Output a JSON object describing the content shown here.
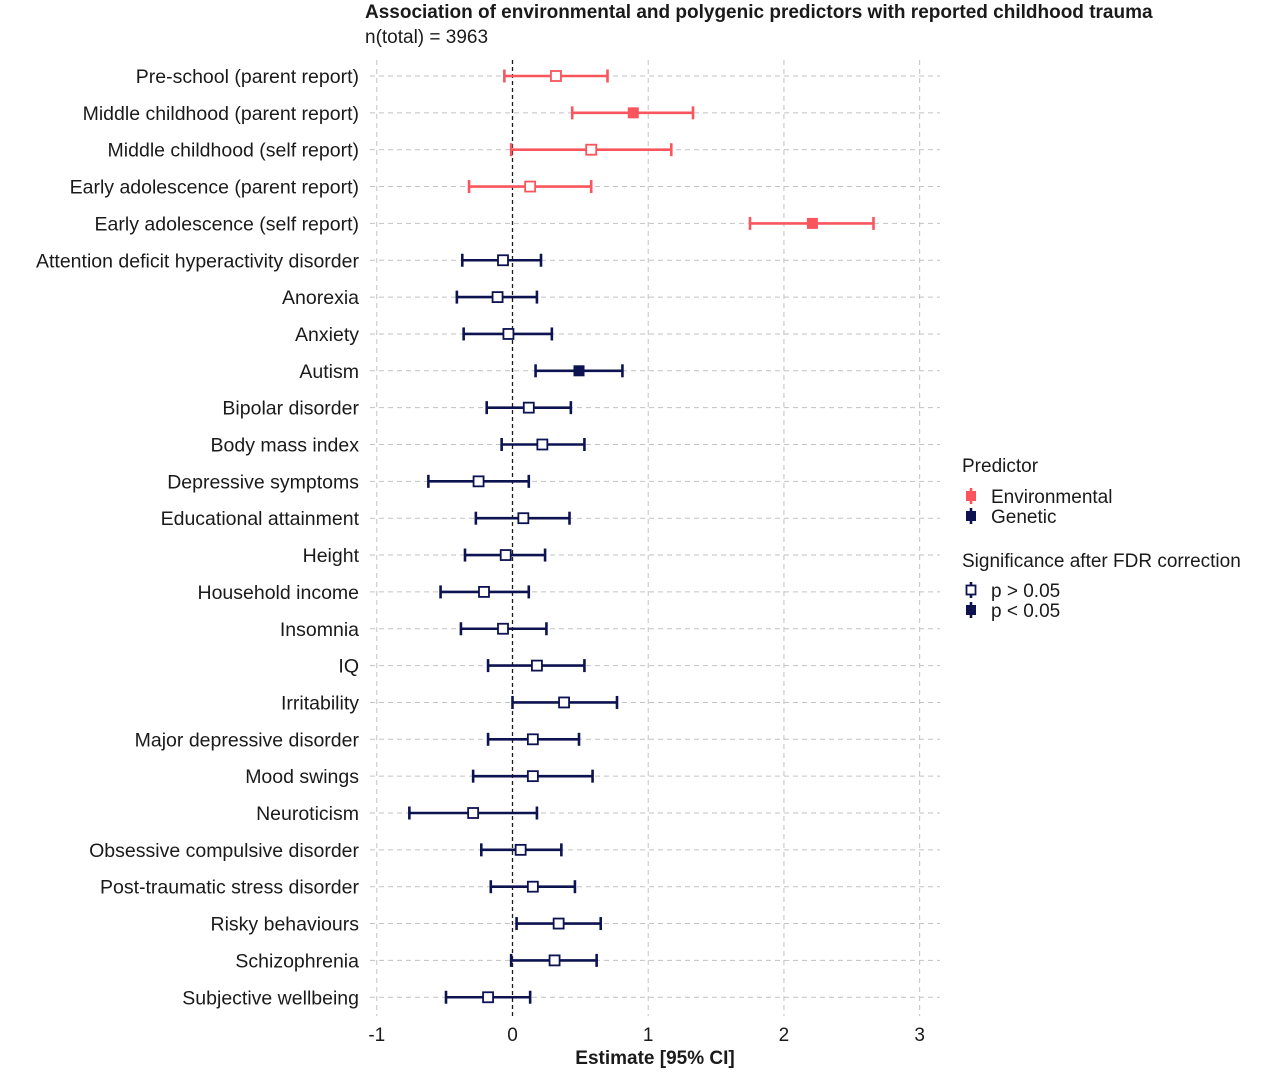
{
  "colors": {
    "environmental": "#f8565c",
    "genetic": "#0d1251",
    "grid": "#c2c2c2",
    "text": "#1a1a1a"
  },
  "chart_data": {
    "type": "forest",
    "title": "Association of environmental and polygenic predictors with reported childhood trauma",
    "subtitle": "n(total) =  3963",
    "xlabel": "Estimate [95% CI]",
    "xlim": [
      -1.05,
      3.15
    ],
    "xticks": [
      -1,
      0,
      1,
      2,
      3
    ],
    "xtick_labels": [
      "-1",
      "0",
      "1",
      "2",
      "3"
    ],
    "grid": true,
    "reference_line": 0,
    "legend": {
      "position": "right",
      "predictor_title": "Predictor",
      "predictor_items": [
        {
          "label": "Environmental",
          "key": "Environmental"
        },
        {
          "label": "Genetic",
          "key": "Genetic"
        }
      ],
      "significance_title": "Significance after FDR correction",
      "significance_items": [
        {
          "label": "p > 0.05",
          "filled": false
        },
        {
          "label": "p < 0.05",
          "filled": true
        }
      ]
    },
    "rows": [
      {
        "label": "Pre-school (parent report)",
        "predictor": "Environmental",
        "estimate": 0.32,
        "lower": -0.06,
        "upper": 0.7,
        "significant": false
      },
      {
        "label": "Middle childhood (parent report)",
        "predictor": "Environmental",
        "estimate": 0.89,
        "lower": 0.44,
        "upper": 1.33,
        "significant": true
      },
      {
        "label": "Middle childhood (self report)",
        "predictor": "Environmental",
        "estimate": 0.58,
        "lower": -0.01,
        "upper": 1.17,
        "significant": false
      },
      {
        "label": "Early adolescence (parent report)",
        "predictor": "Environmental",
        "estimate": 0.13,
        "lower": -0.32,
        "upper": 0.58,
        "significant": false
      },
      {
        "label": "Early adolescence (self report)",
        "predictor": "Environmental",
        "estimate": 2.21,
        "lower": 1.75,
        "upper": 2.66,
        "significant": true
      },
      {
        "label": "Attention deficit hyperactivity disorder",
        "predictor": "Genetic",
        "estimate": -0.07,
        "lower": -0.37,
        "upper": 0.21,
        "significant": false
      },
      {
        "label": "Anorexia",
        "predictor": "Genetic",
        "estimate": -0.11,
        "lower": -0.41,
        "upper": 0.18,
        "significant": false
      },
      {
        "label": "Anxiety",
        "predictor": "Genetic",
        "estimate": -0.03,
        "lower": -0.36,
        "upper": 0.29,
        "significant": false
      },
      {
        "label": "Autism",
        "predictor": "Genetic",
        "estimate": 0.49,
        "lower": 0.17,
        "upper": 0.81,
        "significant": true
      },
      {
        "label": "Bipolar disorder",
        "predictor": "Genetic",
        "estimate": 0.12,
        "lower": -0.19,
        "upper": 0.43,
        "significant": false
      },
      {
        "label": "Body mass index",
        "predictor": "Genetic",
        "estimate": 0.22,
        "lower": -0.08,
        "upper": 0.53,
        "significant": false
      },
      {
        "label": "Depressive symptoms",
        "predictor": "Genetic",
        "estimate": -0.25,
        "lower": -0.62,
        "upper": 0.12,
        "significant": false
      },
      {
        "label": "Educational attainment",
        "predictor": "Genetic",
        "estimate": 0.08,
        "lower": -0.27,
        "upper": 0.42,
        "significant": false
      },
      {
        "label": "Height",
        "predictor": "Genetic",
        "estimate": -0.05,
        "lower": -0.35,
        "upper": 0.24,
        "significant": false
      },
      {
        "label": "Household income",
        "predictor": "Genetic",
        "estimate": -0.21,
        "lower": -0.53,
        "upper": 0.12,
        "significant": false
      },
      {
        "label": "Insomnia",
        "predictor": "Genetic",
        "estimate": -0.07,
        "lower": -0.38,
        "upper": 0.25,
        "significant": false
      },
      {
        "label": "IQ",
        "predictor": "Genetic",
        "estimate": 0.18,
        "lower": -0.18,
        "upper": 0.53,
        "significant": false
      },
      {
        "label": "Irritability",
        "predictor": "Genetic",
        "estimate": 0.38,
        "lower": 0.0,
        "upper": 0.77,
        "significant": false
      },
      {
        "label": "Major depressive disorder",
        "predictor": "Genetic",
        "estimate": 0.15,
        "lower": -0.18,
        "upper": 0.49,
        "significant": false
      },
      {
        "label": "Mood swings",
        "predictor": "Genetic",
        "estimate": 0.15,
        "lower": -0.29,
        "upper": 0.59,
        "significant": false
      },
      {
        "label": "Neuroticism",
        "predictor": "Genetic",
        "estimate": -0.29,
        "lower": -0.76,
        "upper": 0.18,
        "significant": false
      },
      {
        "label": "Obsessive compulsive disorder",
        "predictor": "Genetic",
        "estimate": 0.06,
        "lower": -0.23,
        "upper": 0.36,
        "significant": false
      },
      {
        "label": "Post-traumatic stress disorder",
        "predictor": "Genetic",
        "estimate": 0.15,
        "lower": -0.16,
        "upper": 0.46,
        "significant": false
      },
      {
        "label": "Risky behaviours",
        "predictor": "Genetic",
        "estimate": 0.34,
        "lower": 0.03,
        "upper": 0.65,
        "significant": false
      },
      {
        "label": "Schizophrenia",
        "predictor": "Genetic",
        "estimate": 0.31,
        "lower": -0.01,
        "upper": 0.62,
        "significant": false
      },
      {
        "label": "Subjective wellbeing",
        "predictor": "Genetic",
        "estimate": -0.18,
        "lower": -0.49,
        "upper": 0.13,
        "significant": false
      }
    ]
  }
}
